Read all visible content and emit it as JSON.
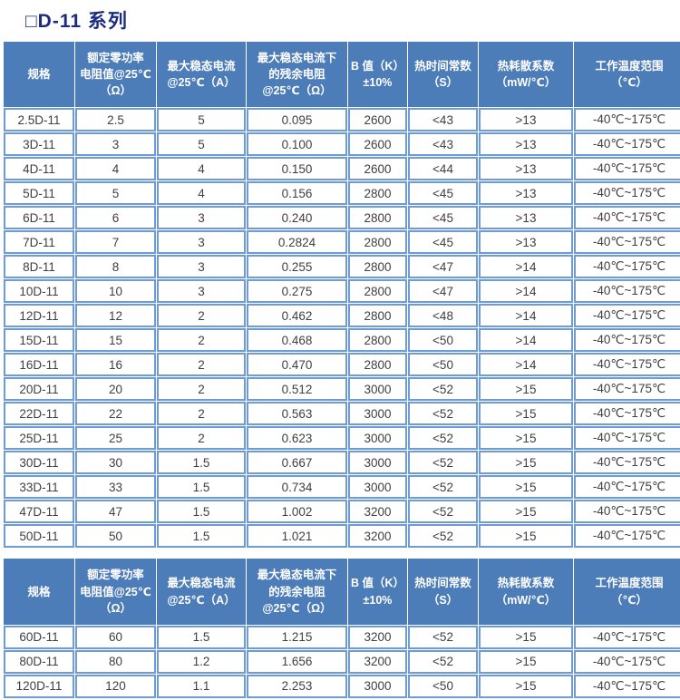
{
  "page_title": "□D-11 系列",
  "colors": {
    "title_text": "#1b2b7d",
    "header_bg": "#4d7db8",
    "header_text": "#ffffff",
    "cell_border": "#6d9bd8",
    "cell_text": "#3f3f3f",
    "page_bg": "#ffffff"
  },
  "table_headers": [
    "规格",
    "额定零功率\n电阻值@25℃\n（Ω）",
    "最大稳态电流\n@25℃（A）",
    "最大稳态电流下\n的残余电阻\n@25℃（Ω）",
    "B 值（K）\n±10%",
    "热时间常数\n（S）",
    "热耗散系数\n（mW/℃）",
    "工作温度范围\n（℃）"
  ],
  "tables": [
    {
      "rows": [
        [
          "2.5D-11",
          "2.5",
          "5",
          "0.095",
          "2600",
          "<43",
          ">13",
          "-40℃~175℃"
        ],
        [
          "3D-11",
          "3",
          "5",
          "0.100",
          "2600",
          "<43",
          ">13",
          "-40℃~175℃"
        ],
        [
          "4D-11",
          "4",
          "4",
          "0.150",
          "2600",
          "<44",
          ">13",
          "-40℃~175℃"
        ],
        [
          "5D-11",
          "5",
          "4",
          "0.156",
          "2800",
          "<45",
          ">13",
          "-40℃~175℃"
        ],
        [
          "6D-11",
          "6",
          "3",
          "0.240",
          "2800",
          "<45",
          ">13",
          "-40℃~175℃"
        ],
        [
          "7D-11",
          "7",
          "3",
          "0.2824",
          "2800",
          "<45",
          ">13",
          "-40℃~175℃"
        ],
        [
          "8D-11",
          "8",
          "3",
          "0.255",
          "2800",
          "<47",
          ">14",
          "-40℃~175℃"
        ],
        [
          "10D-11",
          "10",
          "3",
          "0.275",
          "2800",
          "<47",
          ">14",
          "-40℃~175℃"
        ],
        [
          "12D-11",
          "12",
          "2",
          "0.462",
          "2800",
          "<48",
          ">14",
          "-40℃~175℃"
        ],
        [
          "15D-11",
          "15",
          "2",
          "0.468",
          "2800",
          "<50",
          ">14",
          "-40℃~175℃"
        ],
        [
          "16D-11",
          "16",
          "2",
          "0.470",
          "2800",
          "<50",
          ">14",
          "-40℃~175℃"
        ],
        [
          "20D-11",
          "20",
          "2",
          "0.512",
          "3000",
          "<52",
          ">15",
          "-40℃~175℃"
        ],
        [
          "22D-11",
          "22",
          "2",
          "0.563",
          "3000",
          "<52",
          ">15",
          "-40℃~175℃"
        ],
        [
          "25D-11",
          "25",
          "2",
          "0.623",
          "3000",
          "<52",
          ">15",
          "-40℃~175℃"
        ],
        [
          "30D-11",
          "30",
          "1.5",
          "0.667",
          "3000",
          "<52",
          ">15",
          "-40℃~175℃"
        ],
        [
          "33D-11",
          "33",
          "1.5",
          "0.734",
          "3000",
          "<52",
          ">15",
          "-40℃~175℃"
        ],
        [
          "47D-11",
          "47",
          "1.5",
          "1.002",
          "3200",
          "<52",
          ">15",
          "-40℃~175℃"
        ],
        [
          "50D-11",
          "50",
          "1.5",
          "1.021",
          "3200",
          "<52",
          ">15",
          "-40℃~175℃"
        ]
      ]
    },
    {
      "rows": [
        [
          "60D-11",
          "60",
          "1.5",
          "1.215",
          "3200",
          "<52",
          ">15",
          "-40℃~175℃"
        ],
        [
          "80D-11",
          "80",
          "1.2",
          "1.656",
          "3200",
          "<52",
          ">15",
          "-40℃~175℃"
        ],
        [
          "120D-11",
          "120",
          "1.1",
          "2.253",
          "3000",
          "<50",
          ">15",
          "-40℃~175℃"
        ]
      ]
    }
  ]
}
